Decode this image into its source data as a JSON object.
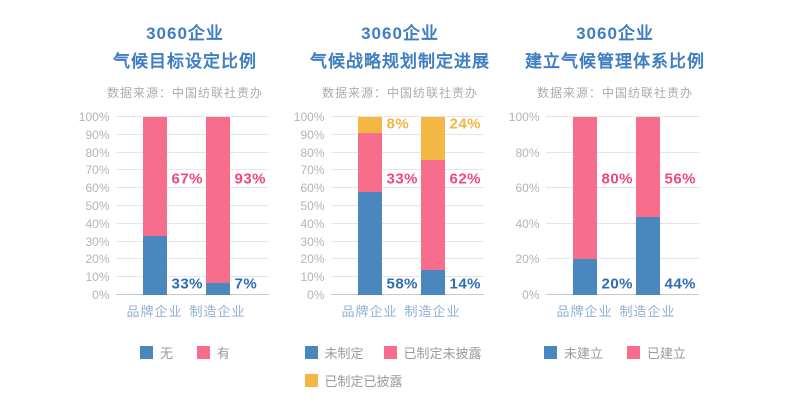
{
  "page": {
    "background": "#ffffff"
  },
  "colors": {
    "title_blue": "#3f7ec1",
    "subtitle_gray": "#ababab",
    "axis_tick_gray": "#b4b4b4",
    "gridline": "#e6e6e6",
    "baseline": "#c9c9c9",
    "xlabel_blue": "#8fafd3",
    "legend_text": "#9b9b9b",
    "bar_blue": "#4a87be",
    "bar_pink": "#f76d8c",
    "bar_yellow": "#f2b843",
    "label_blue": "#2e6db4",
    "label_pink": "#f2477c",
    "label_yellow": "#efb641"
  },
  "chart_data": [
    {
      "type": "bar",
      "stacked": true,
      "title_lines": [
        "3060企业",
        "气候目标设定比例"
      ],
      "source": "数据来源：中国纺联社责办",
      "categories": [
        "品牌企业",
        "制造企业"
      ],
      "series": [
        {
          "name": "无",
          "color": "blue",
          "values": [
            33,
            7
          ],
          "labels": [
            "33%",
            "7%"
          ]
        },
        {
          "name": "有",
          "color": "pink",
          "values": [
            67,
            93
          ],
          "labels": [
            "67%",
            "93%"
          ]
        }
      ],
      "ylim": [
        0,
        100
      ],
      "ytick_step": 10,
      "ytick_suffix": "%",
      "grid": true,
      "legend_position": "bottom"
    },
    {
      "type": "bar",
      "stacked": true,
      "title_lines": [
        "3060企业",
        "气候战略规划制定进展"
      ],
      "source": "数据来源：中国纺联社责办",
      "categories": [
        "品牌企业",
        "制造企业"
      ],
      "series": [
        {
          "name": "未制定",
          "color": "blue",
          "values": [
            58,
            14
          ],
          "labels": [
            "58%",
            "14%"
          ]
        },
        {
          "name": "已制定未披露",
          "color": "pink",
          "values": [
            33,
            62
          ],
          "labels": [
            "33%",
            "62%"
          ]
        },
        {
          "name": "已制定已披露",
          "color": "yellow",
          "values": [
            8,
            24
          ],
          "labels": [
            "8%",
            "24%"
          ]
        }
      ],
      "ylim": [
        0,
        100
      ],
      "ytick_step": 10,
      "ytick_suffix": "%",
      "grid": true,
      "legend_position": "bottom"
    },
    {
      "type": "bar",
      "stacked": true,
      "title_lines": [
        "3060企业",
        "建立气候管理体系比例"
      ],
      "source": "数据来源：中国纺联社责办",
      "categories": [
        "品牌企业",
        "制造企业"
      ],
      "series": [
        {
          "name": "未建立",
          "color": "blue",
          "values": [
            20,
            44
          ],
          "labels": [
            "20%",
            "44%"
          ]
        },
        {
          "name": "已建立",
          "color": "pink",
          "values": [
            80,
            56
          ],
          "labels": [
            "80%",
            "56%"
          ]
        }
      ],
      "ylim": [
        0,
        100
      ],
      "ytick_step": 20,
      "ytick_suffix": "%",
      "grid": true,
      "legend_position": "bottom"
    }
  ]
}
